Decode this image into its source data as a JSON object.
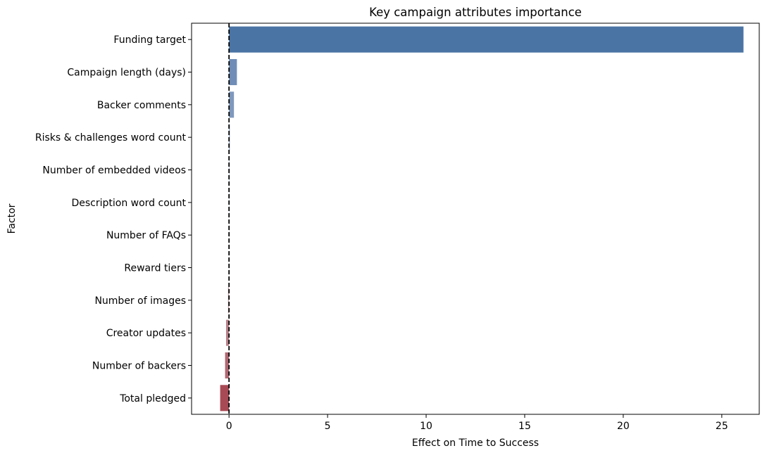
{
  "chart_data": {
    "type": "bar",
    "orientation": "horizontal",
    "title": "Key campaign attributes importance",
    "xlabel": "Effect on Time to Success",
    "ylabel": "Factor",
    "xlim": [
      -1.9,
      26.9
    ],
    "xticks": [
      0,
      5,
      10,
      15,
      20,
      25
    ],
    "grid": false,
    "reference_line": {
      "x": 0,
      "style": "dashed",
      "color": "#000000"
    },
    "categories": [
      "Funding target",
      "Campaign length (days)",
      "Backer comments",
      "Risks & challenges word count",
      "Number of embedded videos",
      "Description word count",
      "Number of FAQs",
      "Reward tiers",
      "Number of images",
      "Creator updates",
      "Number of backers",
      "Total pledged"
    ],
    "values": [
      26.1,
      0.4,
      0.25,
      0.04,
      0.02,
      0.01,
      0.0,
      -0.01,
      -0.05,
      -0.15,
      -0.2,
      -0.45
    ],
    "bar_colors": [
      "#4a74a4",
      "#6f8db6",
      "#7f98bd",
      "#8aa0c2",
      "#9aaac6",
      "#a8b3c9",
      "#b7b7c6",
      "#c8b0b4",
      "#c49da3",
      "#b98089",
      "#b06772",
      "#a84a55"
    ]
  }
}
